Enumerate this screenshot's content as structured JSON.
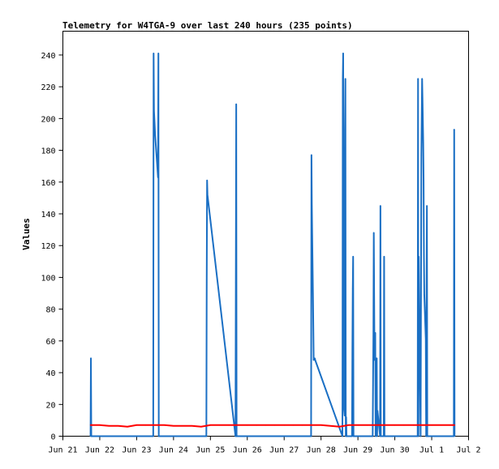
{
  "chart_data": {
    "type": "line",
    "title": "Telemetry for W4TGA-9 over last 240 hours (235 points)",
    "xlabel": "",
    "ylabel": "Values",
    "xlim": [
      21.0,
      32.0
    ],
    "ylim": [
      0,
      255
    ],
    "grid": false,
    "legend": "none",
    "x_ticks": [
      {
        "v": 21,
        "label": "Jun 21"
      },
      {
        "v": 22,
        "label": "Jun 22"
      },
      {
        "v": 23,
        "label": "Jun 23"
      },
      {
        "v": 24,
        "label": "Jun 24"
      },
      {
        "v": 25,
        "label": "Jun 25"
      },
      {
        "v": 26,
        "label": "Jun 26"
      },
      {
        "v": 27,
        "label": "Jun 27"
      },
      {
        "v": 28,
        "label": "Jun 28"
      },
      {
        "v": 29,
        "label": "Jun 29"
      },
      {
        "v": 30,
        "label": "Jun 30"
      },
      {
        "v": 31,
        "label": "Jul 1"
      },
      {
        "v": 32,
        "label": "Jul 2"
      }
    ],
    "y_ticks": [
      0,
      20,
      40,
      60,
      80,
      100,
      120,
      140,
      160,
      180,
      200,
      220,
      240
    ],
    "series": [
      {
        "color": "#1a6fc4",
        "x": [
          21.75,
          21.76,
          21.77,
          23.45,
          23.46,
          23.47,
          23.5,
          23.58,
          23.59,
          23.6,
          24.89,
          24.9,
          24.91,
          24.92,
          25.68,
          25.69,
          25.7,
          25.71,
          27.73,
          27.74,
          27.75,
          27.76,
          27.78,
          27.8,
          27.83,
          27.84,
          28.58,
          28.59,
          28.6,
          28.62,
          28.64,
          28.65,
          28.66,
          28.67,
          28.68,
          28.69,
          28.7,
          28.71,
          28.84,
          28.85,
          28.86,
          28.87,
          28.88,
          29.4,
          29.41,
          29.42,
          29.43,
          29.45,
          29.47,
          29.48,
          29.49,
          29.51,
          29.52,
          29.53,
          29.6,
          29.61,
          29.62,
          29.7,
          29.71,
          29.72,
          30.62,
          30.63,
          30.64,
          30.65,
          30.7,
          30.71,
          30.72,
          30.74,
          30.75,
          30.77,
          30.78,
          30.79,
          30.8,
          30.84,
          30.85,
          30.86,
          30.87,
          30.88,
          30.89,
          31.6,
          31.61,
          31.62
        ],
        "y": [
          0,
          49,
          0,
          0,
          241,
          205,
          190,
          163,
          241,
          0,
          0,
          97,
          161,
          152,
          0,
          97,
          209,
          0,
          0,
          177,
          145,
          126,
          90,
          48,
          49,
          48,
          0,
          225,
          241,
          18,
          13,
          193,
          225,
          0,
          12,
          0,
          0,
          0,
          0,
          56,
          93,
          113,
          0,
          0,
          32,
          65,
          128,
          48,
          65,
          0,
          23,
          49,
          0,
          16,
          0,
          145,
          0,
          0,
          113,
          0,
          0,
          225,
          0,
          113,
          0,
          89,
          177,
          225,
          213,
          185,
          161,
          113,
          89,
          61,
          0,
          81,
          145,
          0,
          0,
          0,
          193,
          0
        ]
      },
      {
        "color": "#ff0000",
        "x": [
          21.75,
          22.0,
          22.25,
          22.5,
          22.75,
          23.0,
          23.25,
          23.5,
          23.75,
          24.0,
          24.25,
          24.5,
          24.75,
          25.0,
          25.25,
          25.5,
          25.75,
          26.0,
          26.25,
          26.5,
          26.75,
          27.0,
          27.25,
          27.5,
          27.75,
          28.0,
          28.25,
          28.5,
          28.75,
          29.0,
          29.25,
          29.5,
          29.75,
          30.0,
          30.25,
          30.5,
          30.75,
          31.0,
          31.25,
          31.5,
          31.62
        ],
        "y": [
          7,
          7,
          6.5,
          6.5,
          6,
          7,
          7,
          7,
          7,
          6.5,
          6.5,
          6.5,
          6,
          7,
          7,
          7,
          7,
          7,
          7,
          7,
          7,
          7,
          7,
          7,
          7,
          7,
          6.5,
          6,
          7,
          7,
          7,
          7,
          7,
          7,
          7,
          7,
          7,
          7,
          7,
          7,
          7
        ]
      }
    ]
  }
}
